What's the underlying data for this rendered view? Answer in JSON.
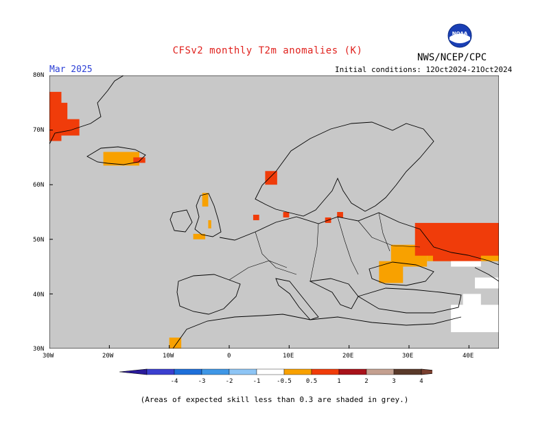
{
  "title": "CFSv2 monthly T2m anomalies (K)",
  "title_color": "#e0211d",
  "agency_text": "NWS/NCEP/CPC",
  "logo_text": "NOAA",
  "month_label": "Mar 2025",
  "month_color": "#2b3fd6",
  "initial_conditions": "Initial conditions: 12Oct2024-21Oct2024",
  "footnote": "(Areas of expected skill less than 0.3 are shaded in grey.)",
  "map": {
    "lon_range": [
      -30,
      45
    ],
    "lat_range": [
      30,
      80
    ],
    "land_color": "#c8c8c8",
    "lat_ticks": [
      "80N",
      "70N",
      "60N",
      "50N",
      "40N",
      "30N"
    ],
    "lon_ticks": [
      "30W",
      "20W",
      "10W",
      "0",
      "10E",
      "20E",
      "30E",
      "40E"
    ]
  },
  "colorbar": {
    "labels": [
      "-4",
      "-3",
      "-2",
      "-1",
      "-0.5",
      "0.5",
      "1",
      "2",
      "3",
      "4"
    ],
    "colors": [
      "#2a1a9a",
      "#3b3fcf",
      "#1e6fd9",
      "#3f97e6",
      "#8ec5f5",
      "#ffffff",
      "#f8a100",
      "#f03c0a",
      "#a8121a",
      "#c4a090",
      "#5a3a2a",
      "#7a4030"
    ]
  },
  "anomaly_regions": [
    {
      "name": "greenland-east",
      "level": "1-2",
      "cells": [
        [
          -30,
          68,
          -28,
          77
        ],
        [
          -28,
          69,
          -25,
          72
        ],
        [
          -29,
          70,
          -27,
          75
        ]
      ]
    },
    {
      "name": "iceland",
      "level": "0.5-1",
      "cells": [
        [
          -21,
          63.5,
          -15,
          66
        ]
      ]
    },
    {
      "name": "iceland-southeast",
      "level": "1-2",
      "cells": [
        [
          -16,
          64,
          -14,
          65
        ]
      ]
    },
    {
      "name": "norway-west",
      "level": "1-2",
      "cells": [
        [
          6,
          60,
          8,
          62.5
        ]
      ]
    },
    {
      "name": "scotland",
      "level": "0.5-1",
      "cells": [
        [
          -4.5,
          56,
          -3.5,
          58.5
        ]
      ]
    },
    {
      "name": "england-east",
      "level": "0.5-1",
      "cells": [
        [
          -3.5,
          52,
          -3,
          53.5
        ]
      ]
    },
    {
      "name": "wales-south",
      "level": "0.5-1",
      "cells": [
        [
          -6,
          50,
          -4,
          51
        ]
      ]
    },
    {
      "name": "netherlands",
      "level": "1-2",
      "cells": [
        [
          4,
          53.5,
          5,
          54.5
        ]
      ]
    },
    {
      "name": "germany-north",
      "level": "1-2",
      "cells": [
        [
          9,
          54,
          10,
          55
        ]
      ]
    },
    {
      "name": "poland-north",
      "level": "1-2",
      "cells": [
        [
          16,
          53,
          17,
          54
        ],
        [
          18,
          54,
          19,
          55
        ]
      ]
    },
    {
      "name": "ukraine-russia",
      "level": "0.5-1",
      "cells": [
        [
          27,
          45,
          33,
          49
        ],
        [
          25,
          42,
          29,
          46
        ],
        [
          33,
          46,
          45,
          49
        ]
      ]
    },
    {
      "name": "russia-south",
      "level": "1-2",
      "cells": [
        [
          31,
          47,
          45,
          53
        ],
        [
          34,
          46,
          42,
          48
        ]
      ]
    },
    {
      "name": "morocco",
      "level": "0.5-1",
      "cells": [
        [
          -10,
          30,
          -8,
          32
        ]
      ]
    }
  ],
  "masked_regions": [
    {
      "name": "caucasus-white",
      "cells": [
        [
          37,
          45,
          42,
          46
        ],
        [
          41,
          41,
          45,
          43
        ],
        [
          37,
          33,
          45,
          38
        ],
        [
          39,
          36,
          42,
          40
        ]
      ]
    }
  ]
}
